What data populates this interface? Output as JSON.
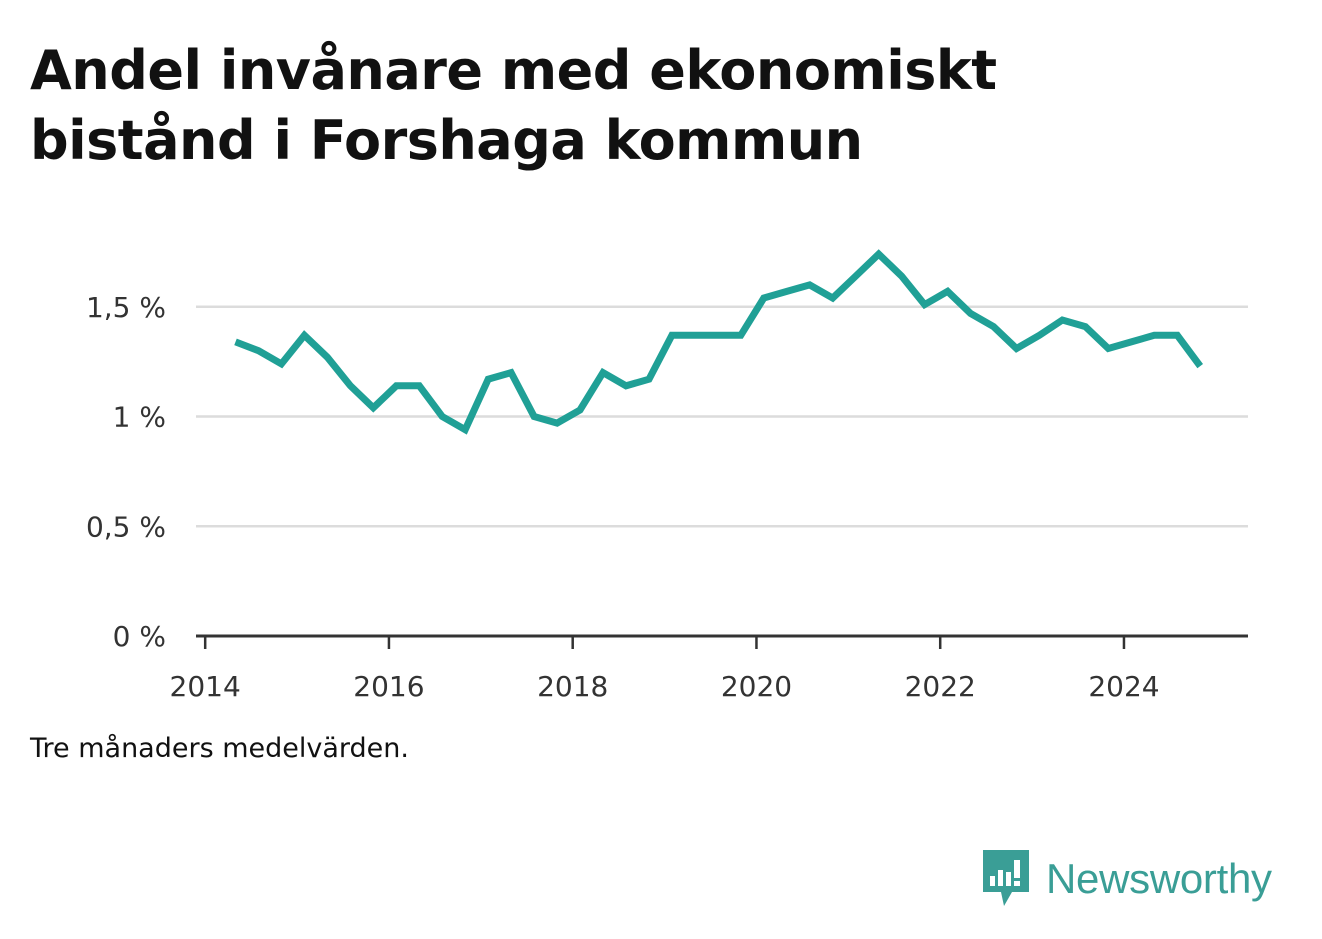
{
  "title": "Andel invånare med ekonomiskt bistånd i Forshaga kommun",
  "note": "Tre månaders medelvärden.",
  "brand": {
    "name": "Newsworthy",
    "color": "#3a9e96",
    "icon": "newsworthy-logo-icon"
  },
  "chart_data": {
    "type": "line",
    "title": "Andel invånare med ekonomiskt bistånd i Forshaga kommun",
    "xlabel": "",
    "ylabel": "",
    "xlim": [
      2013.9,
      2025.35
    ],
    "ylim": [
      0,
      1.85
    ],
    "x_ticks": [
      2014,
      2016,
      2018,
      2020,
      2022,
      2024
    ],
    "x_tick_labels": [
      "2014",
      "2016",
      "2018",
      "2020",
      "2022",
      "2024"
    ],
    "y_ticks": [
      0,
      0.5,
      1,
      1.5
    ],
    "y_tick_labels": [
      "0 %",
      "0,5 %",
      "1 %",
      "1,5 %"
    ],
    "grid": true,
    "line_color": "#20a096",
    "series": [
      {
        "x": [
          2014.33,
          2014.58,
          2014.83,
          2015.08,
          2015.33,
          2015.58,
          2015.83,
          2016.08,
          2016.33,
          2016.58,
          2016.83,
          2017.08,
          2017.33,
          2017.58,
          2017.83,
          2018.08,
          2018.33,
          2018.58,
          2018.83,
          2019.08,
          2019.33,
          2019.58,
          2019.83,
          2020.08,
          2020.33,
          2020.58,
          2020.83,
          2021.08,
          2021.33,
          2021.58,
          2021.83,
          2022.08,
          2022.33,
          2022.58,
          2022.83,
          2023.08,
          2023.33,
          2023.58,
          2023.83,
          2024.08,
          2024.33,
          2024.58,
          2024.83
        ],
        "y": [
          1.34,
          1.3,
          1.24,
          1.37,
          1.27,
          1.14,
          1.04,
          1.14,
          1.14,
          1.0,
          0.94,
          1.17,
          1.2,
          1.0,
          0.97,
          1.03,
          1.2,
          1.14,
          1.17,
          1.37,
          1.37,
          1.37,
          1.37,
          1.54,
          1.57,
          1.6,
          1.54,
          1.64,
          1.74,
          1.64,
          1.51,
          1.57,
          1.47,
          1.41,
          1.31,
          1.37,
          1.44,
          1.41,
          1.31,
          1.34,
          1.37,
          1.37,
          1.23
        ]
      }
    ]
  }
}
